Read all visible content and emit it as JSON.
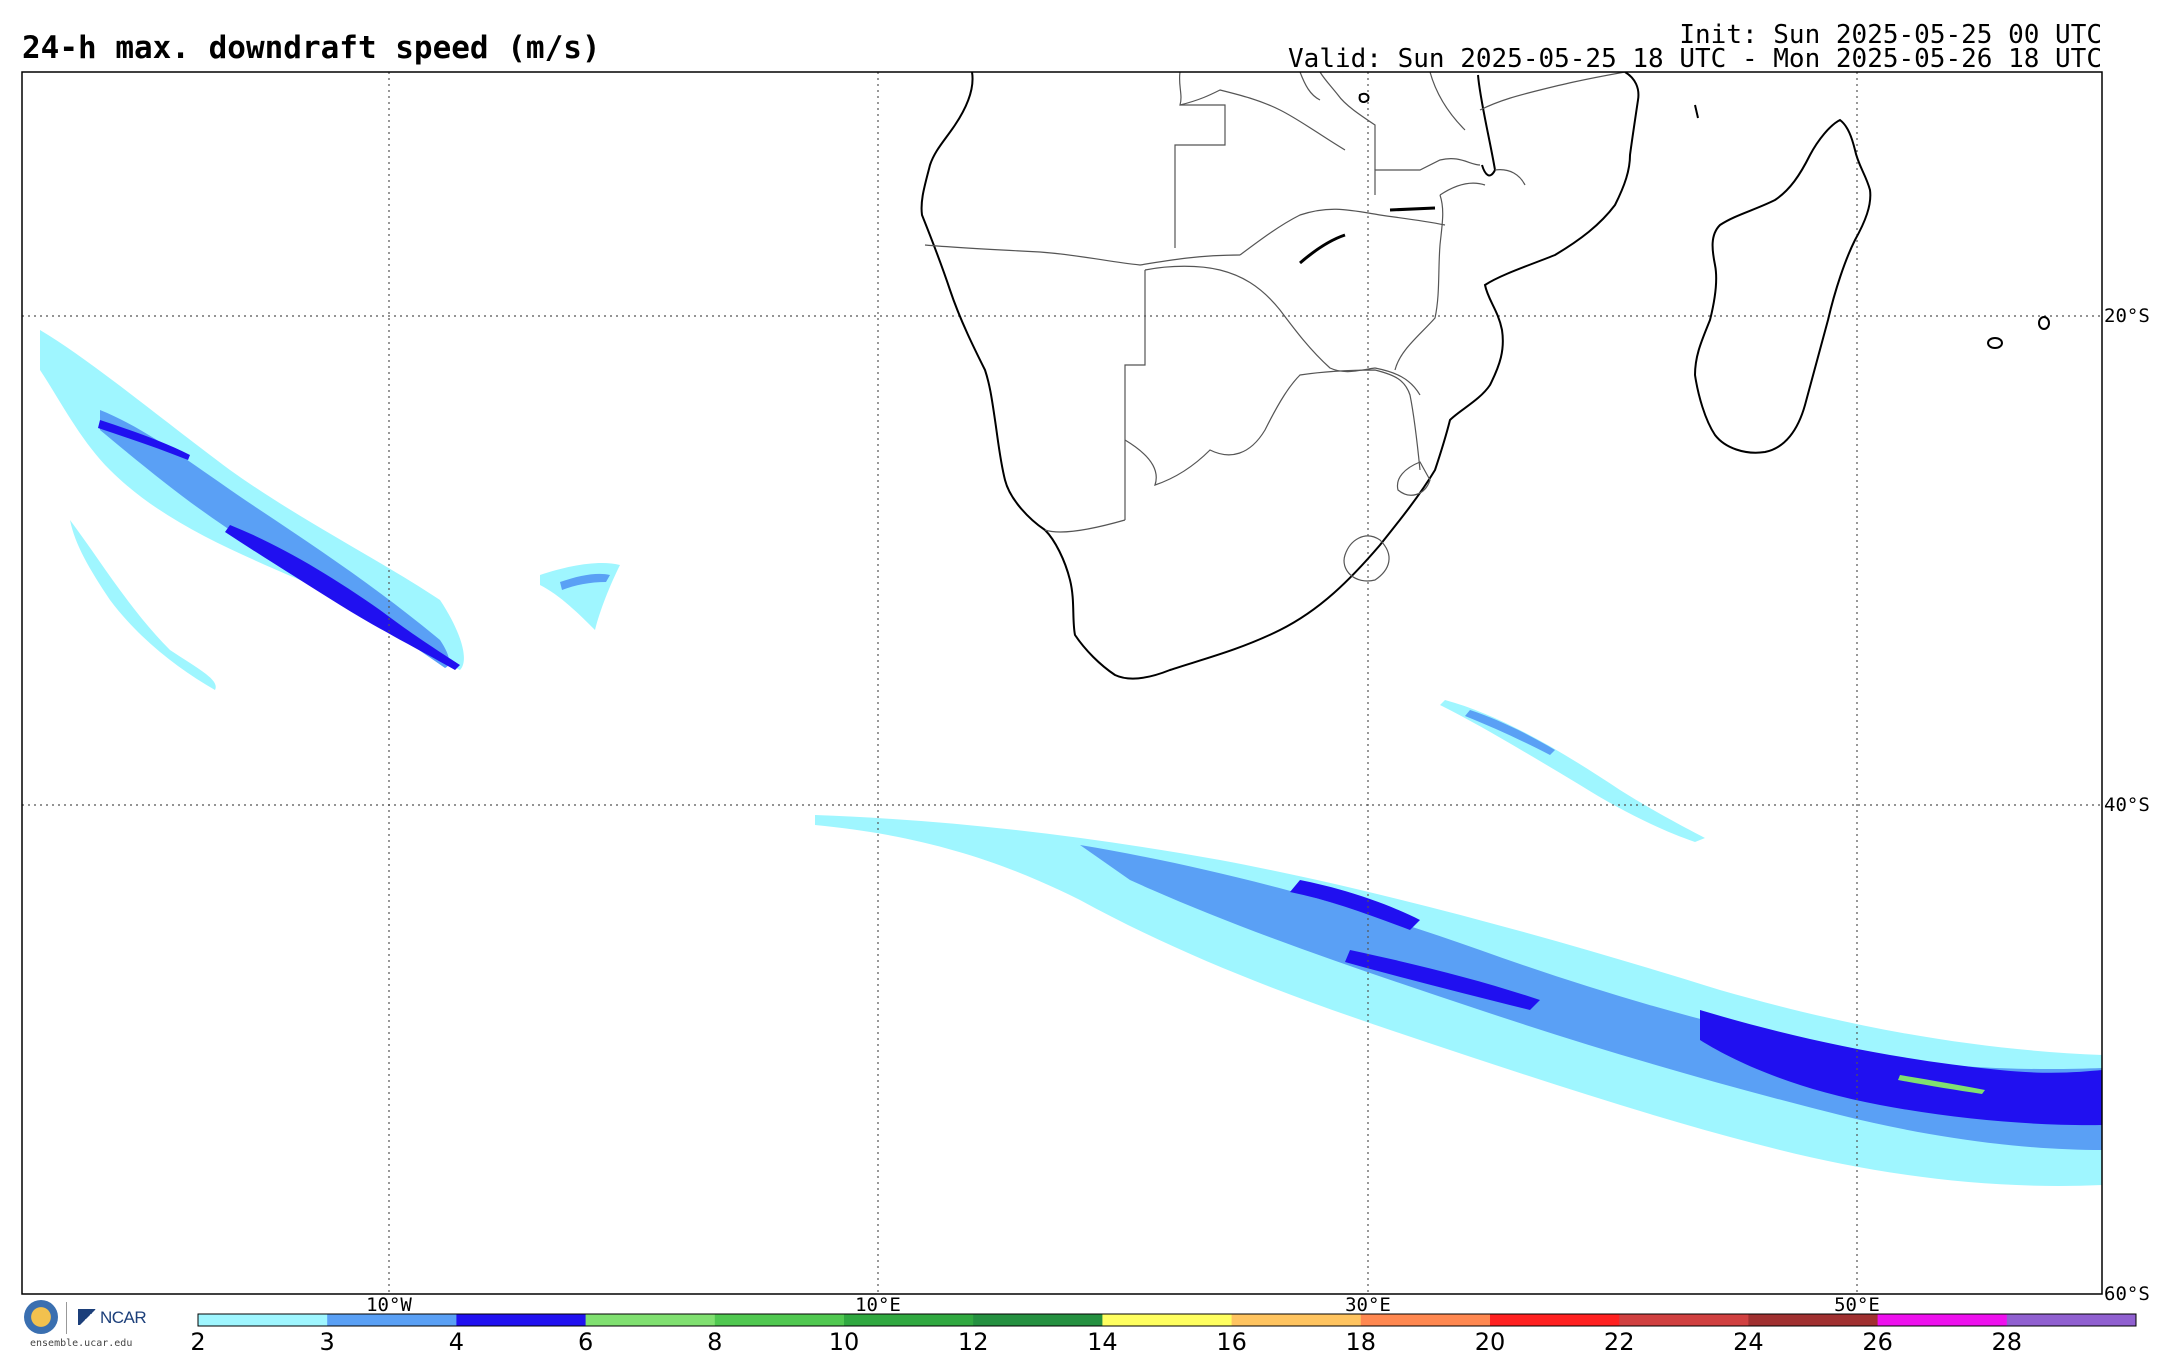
{
  "header": {
    "title": "24-h max. downdraft speed (m/s)",
    "init": "Init: Sun 2025-05-25 00 UTC",
    "valid": "Valid: Sun 2025-05-25 18 UTC - Mon 2025-05-26 18 UTC"
  },
  "map": {
    "lon_range": [
      -25,
      60
    ],
    "lat_range": [
      -10,
      -60
    ],
    "lon_labels": [
      "10°W",
      "10°E",
      "30°E",
      "50°E"
    ],
    "lat_labels": [
      "20°S",
      "40°S",
      "60°S"
    ],
    "grid_lines": true,
    "grid_lons": [
      -10,
      10,
      30,
      50
    ],
    "grid_lats": [
      -20,
      -40
    ]
  },
  "legend": {
    "ticks": [
      "2",
      "3",
      "4",
      "6",
      "8",
      "10",
      "12",
      "14",
      "16",
      "18",
      "20",
      "22",
      "24",
      "26",
      "28"
    ],
    "colors": [
      "#9ff6ff",
      "#5aa0f5",
      "#2010f0",
      "#80e070",
      "#50c850",
      "#30a840",
      "#249040",
      "#ffff60",
      "#ffc460",
      "#ff8850",
      "#ff2020",
      "#d04040",
      "#a03030",
      "#ee10ee",
      "#9060d0"
    ]
  },
  "logos": {
    "ncar_text": "NCAR",
    "url": "ensemble.ucar.edu"
  }
}
